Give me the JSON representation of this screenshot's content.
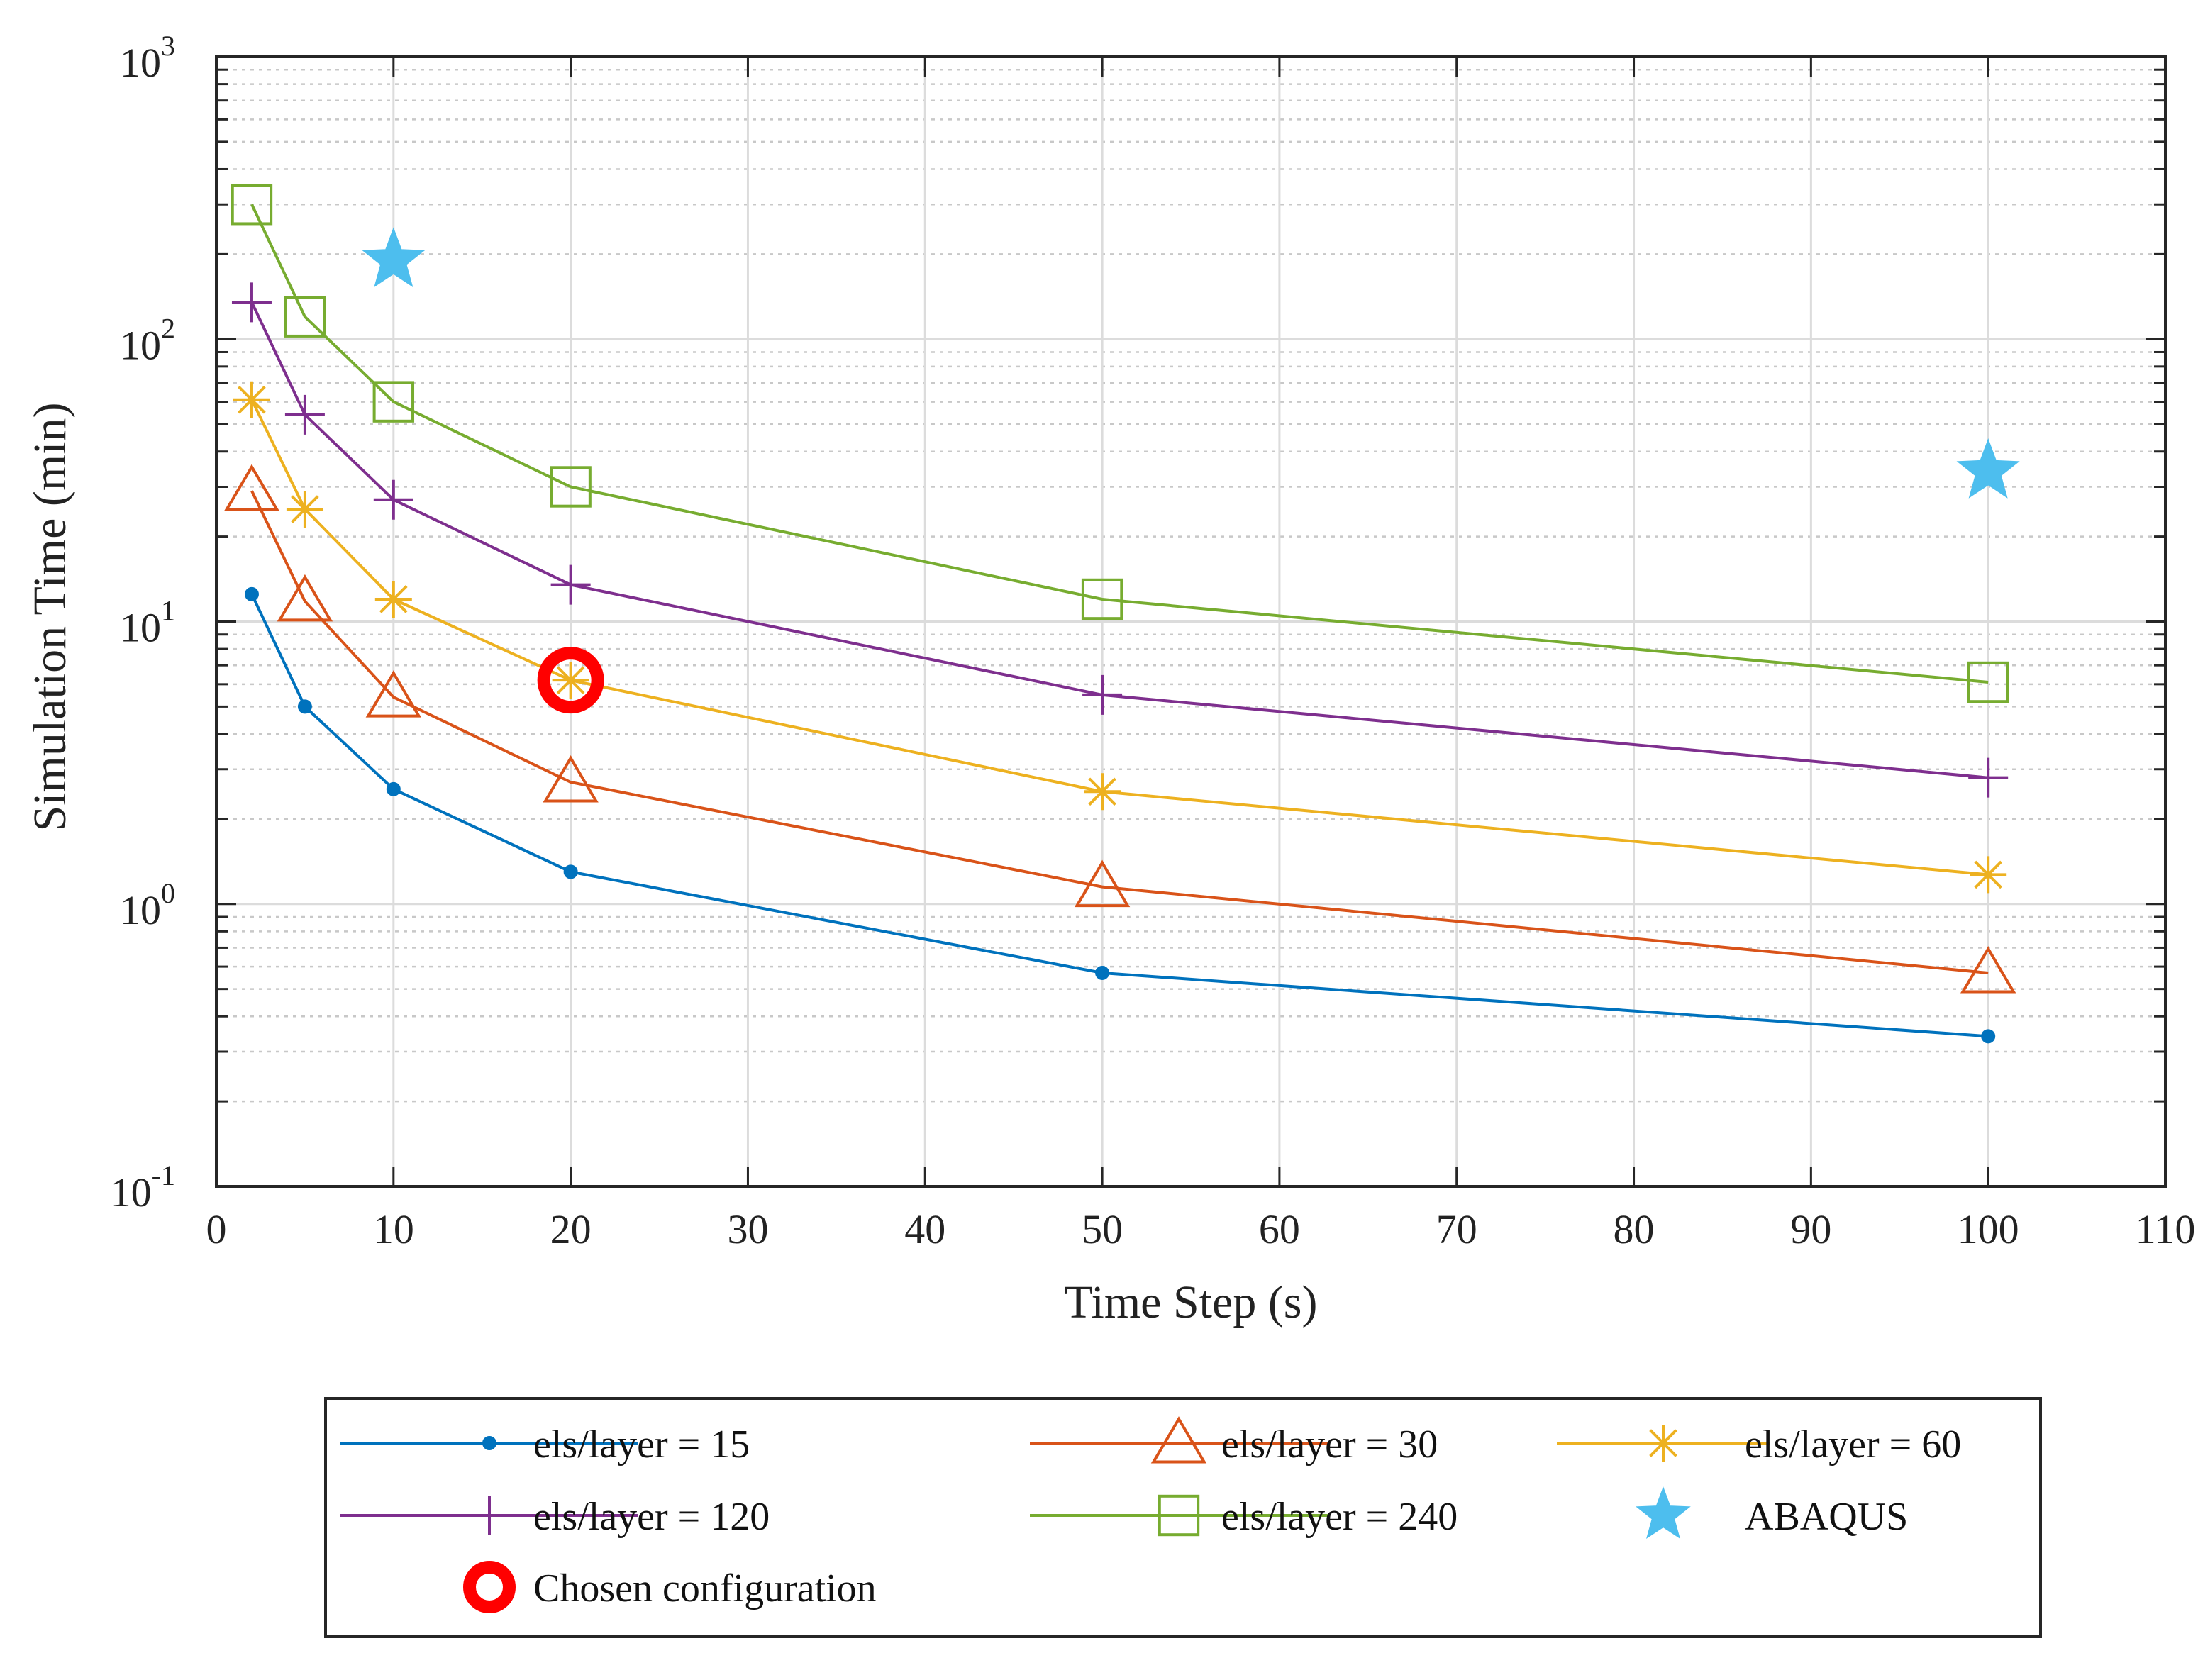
{
  "chart_data": {
    "type": "line",
    "title": "",
    "xlabel": "Time Step (s)",
    "ylabel": "Simulation Time (min)",
    "xlim": [
      0,
      110
    ],
    "ylim": [
      0.1,
      1000
    ],
    "yscale": "log",
    "grid": true,
    "x_ticks": [
      0,
      10,
      20,
      30,
      40,
      50,
      60,
      70,
      80,
      90,
      100,
      110
    ],
    "y_ticks": [
      {
        "value": 0.1,
        "base": "10",
        "exp": "-1"
      },
      {
        "value": 1,
        "base": "10",
        "exp": "0"
      },
      {
        "value": 10,
        "base": "10",
        "exp": "1"
      },
      {
        "value": 100,
        "base": "10",
        "exp": "2"
      },
      {
        "value": 1000,
        "base": "10",
        "exp": "3"
      }
    ],
    "series": [
      {
        "name": "els/layer = 15",
        "color": "#0072BD",
        "marker": "dot",
        "x": [
          2,
          5,
          10,
          20,
          50,
          100
        ],
        "y": [
          12.5,
          5.0,
          2.55,
          1.3,
          0.57,
          0.34
        ]
      },
      {
        "name": "els/layer = 30",
        "color": "#D95319",
        "marker": "triangle",
        "x": [
          2,
          5,
          10,
          20,
          50,
          100
        ],
        "y": [
          29,
          11.8,
          5.4,
          2.7,
          1.15,
          0.57
        ]
      },
      {
        "name": "els/layer = 60",
        "color": "#EDB120",
        "marker": "asterisk",
        "x": [
          2,
          5,
          10,
          20,
          50,
          100
        ],
        "y": [
          61,
          25,
          12,
          6.2,
          2.5,
          1.27
        ]
      },
      {
        "name": "els/layer = 120",
        "color": "#7E2F8E",
        "marker": "plus",
        "x": [
          2,
          5,
          10,
          20,
          50,
          100
        ],
        "y": [
          135,
          54,
          27,
          13.5,
          5.5,
          2.8
        ]
      },
      {
        "name": "els/layer = 240",
        "color": "#77AC30",
        "marker": "square",
        "x": [
          2,
          5,
          10,
          20,
          50,
          100
        ],
        "y": [
          300,
          120,
          60,
          30,
          12,
          6.1
        ]
      },
      {
        "name": "ABAQUS",
        "color": "#4DBEEE",
        "marker": "star",
        "line": false,
        "x": [
          10,
          100
        ],
        "y": [
          190,
          34
        ]
      },
      {
        "name": "Chosen configuration",
        "color": "#FF0000",
        "marker": "circle",
        "line": false,
        "x": [
          20
        ],
        "y": [
          6.2
        ]
      }
    ],
    "legend_position": "bottom"
  }
}
